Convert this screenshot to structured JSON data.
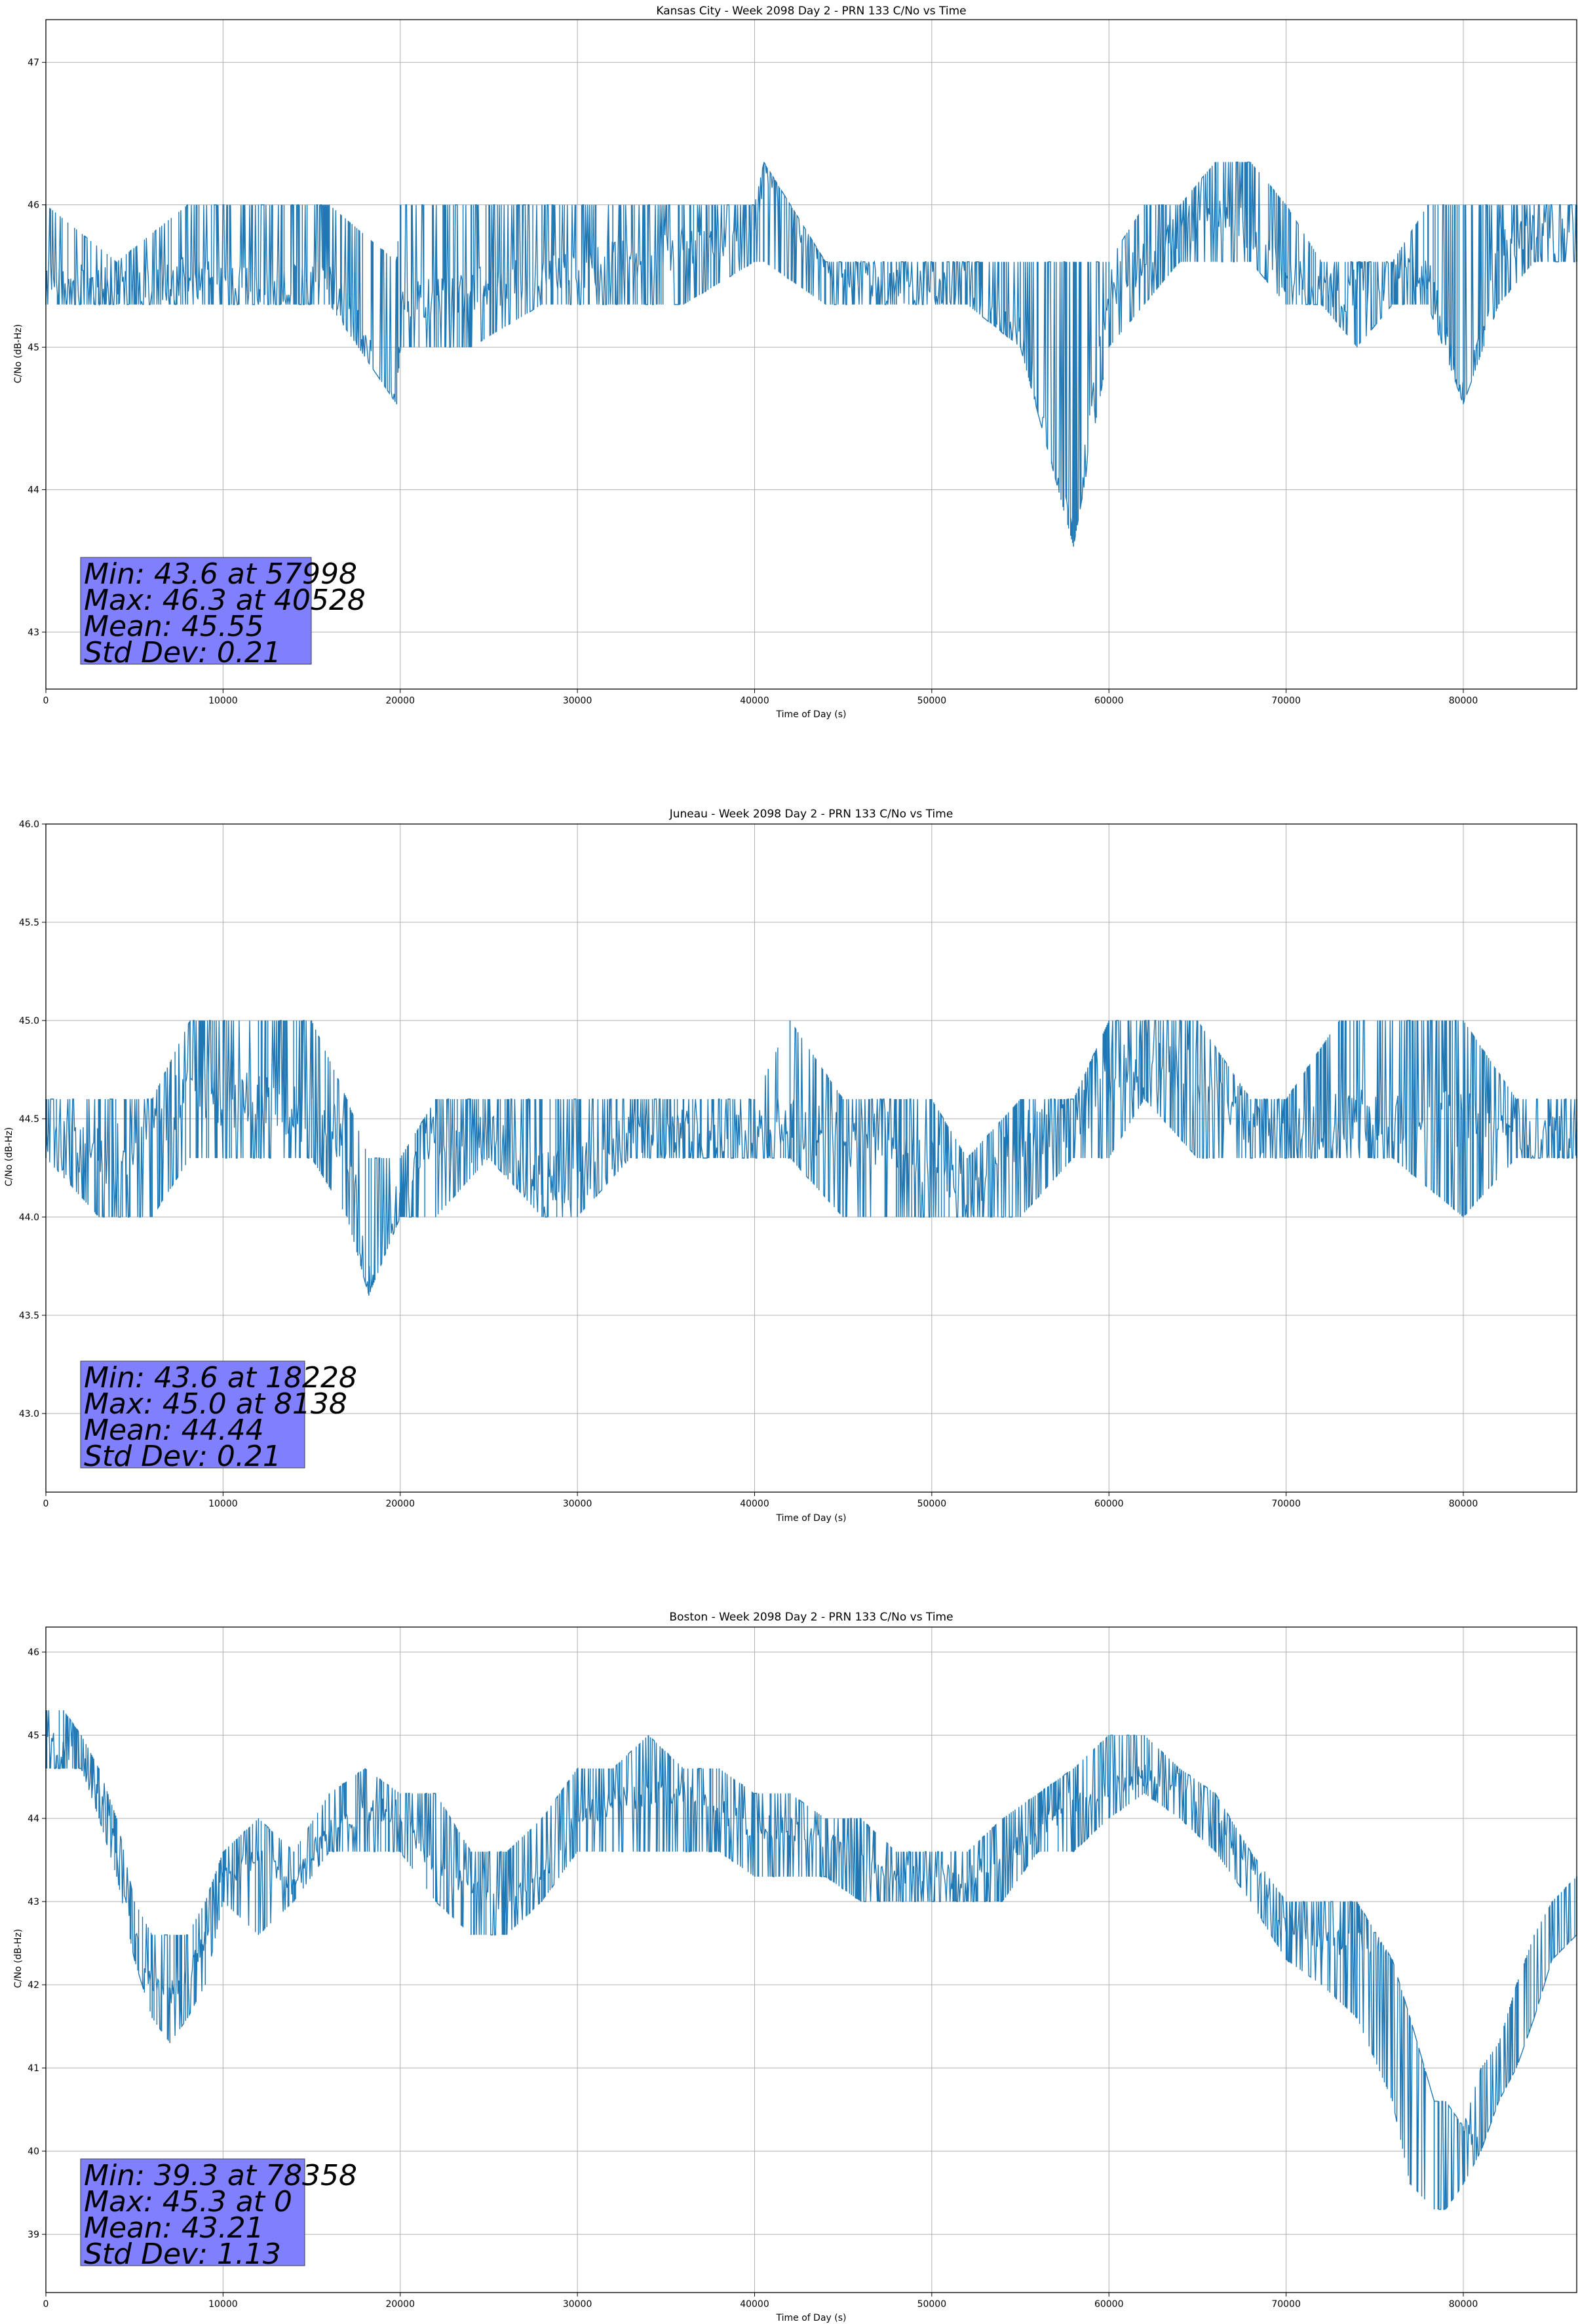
{
  "figure": {
    "series_color": "#1f77b4",
    "stats_box_color": "#8080ff",
    "grid": true
  },
  "chart_data": [
    {
      "type": "line",
      "title": "Kansas City - Week 2098 Day 2 - PRN 133 C/No vs Time",
      "xlabel": "Time of Day (s)",
      "ylabel": "C/No (dB-Hz)",
      "xlim": [
        0,
        86400
      ],
      "ylim": [
        42.6,
        47.3
      ],
      "xticks": [
        0,
        10000,
        20000,
        30000,
        40000,
        50000,
        60000,
        70000,
        80000
      ],
      "yticks": [
        43,
        44,
        45,
        46,
        47
      ],
      "ytick_labels": [
        "43",
        "44",
        "45",
        "46",
        "47"
      ],
      "series": [
        {
          "x": [
            0,
            4000,
            8000,
            12000,
            16000,
            19800,
            20000,
            24000,
            28000,
            32000,
            36000,
            40000,
            40528,
            44000,
            48000,
            52000,
            55000,
            57998,
            60000,
            62000,
            64000,
            66000,
            68000,
            70000,
            72000,
            74000,
            76000,
            78000,
            80000,
            82000,
            84000,
            86400
          ],
          "y": [
            45.5,
            45.4,
            45.5,
            45.4,
            45.5,
            44.6,
            45.3,
            45.4,
            45.5,
            45.6,
            45.7,
            45.8,
            46.3,
            45.6,
            45.4,
            45.4,
            45.1,
            43.6,
            45.4,
            45.6,
            45.8,
            46.0,
            45.8,
            45.5,
            45.4,
            45.4,
            45.5,
            45.5,
            44.6,
            45.7,
            45.8,
            45.8
          ],
          "lo": [
            45.3,
            45.3,
            45.3,
            45.3,
            45.3,
            44.6,
            45.0,
            45.0,
            45.3,
            45.3,
            45.3,
            45.6,
            45.6,
            45.3,
            45.3,
            45.3,
            45.0,
            43.6,
            45.0,
            45.3,
            45.6,
            45.6,
            45.6,
            45.3,
            45.3,
            45.0,
            45.3,
            45.3,
            44.6,
            45.3,
            45.6,
            45.6
          ],
          "hi": [
            46.0,
            45.6,
            46.0,
            46.0,
            46.0,
            45.6,
            46.0,
            46.0,
            46.0,
            46.0,
            46.0,
            46.0,
            46.3,
            45.6,
            45.6,
            45.6,
            45.6,
            45.6,
            45.6,
            46.0,
            46.0,
            46.3,
            46.3,
            46.0,
            45.6,
            45.6,
            45.6,
            46.0,
            46.0,
            46.0,
            46.0,
            46.0
          ]
        }
      ],
      "stats": [
        "Min: 43.6 at 57998",
        "Max: 46.3 at 40528",
        "Mean: 45.55",
        "Std Dev: 0.21"
      ]
    },
    {
      "type": "line",
      "title": "Juneau - Week 2098 Day 2 - PRN 133 C/No vs Time",
      "xlabel": "Time of Day (s)",
      "ylabel": "C/No (dB-Hz)",
      "xlim": [
        0,
        86400
      ],
      "ylim": [
        42.6,
        46.0
      ],
      "xticks": [
        0,
        10000,
        20000,
        30000,
        40000,
        50000,
        60000,
        70000,
        80000
      ],
      "yticks": [
        43.0,
        43.5,
        44.0,
        44.5,
        45.0,
        45.5,
        46.0
      ],
      "ytick_labels": [
        "43.0",
        "43.5",
        "44.0",
        "44.5",
        "45.0",
        "45.5",
        "46.0"
      ],
      "series": [
        {
          "x": [
            0,
            3000,
            6000,
            8138,
            10000,
            12000,
            15000,
            17000,
            18228,
            20000,
            22000,
            25000,
            28000,
            30000,
            33000,
            36000,
            40000,
            42000,
            45000,
            48000,
            50000,
            52000,
            55000,
            58000,
            60000,
            62000,
            65000,
            68000,
            70000,
            73000,
            76000,
            80000,
            83000,
            86400
          ],
          "y": [
            44.4,
            44.3,
            44.4,
            44.7,
            44.6,
            44.6,
            44.5,
            44.4,
            43.6,
            44.1,
            44.4,
            44.4,
            44.2,
            44.2,
            44.4,
            44.4,
            44.4,
            44.5,
            44.4,
            44.4,
            44.3,
            44.1,
            44.4,
            44.5,
            44.7,
            44.8,
            44.7,
            44.5,
            44.4,
            44.5,
            44.5,
            44.5,
            44.4,
            44.4
          ],
          "lo": [
            44.3,
            44.0,
            44.0,
            44.3,
            44.3,
            44.3,
            44.3,
            44.0,
            43.6,
            44.0,
            44.0,
            44.3,
            44.0,
            44.0,
            44.3,
            44.3,
            44.3,
            44.3,
            44.0,
            44.0,
            44.0,
            44.0,
            44.0,
            44.3,
            44.3,
            44.6,
            44.3,
            44.3,
            44.3,
            44.3,
            44.3,
            44.0,
            44.3,
            44.3
          ],
          "hi": [
            44.6,
            44.6,
            44.6,
            45.0,
            45.0,
            45.0,
            45.0,
            44.6,
            44.3,
            44.3,
            44.6,
            44.6,
            44.6,
            44.6,
            44.6,
            44.6,
            44.6,
            45.0,
            44.6,
            44.6,
            44.6,
            44.3,
            44.6,
            44.6,
            45.0,
            45.0,
            45.0,
            44.6,
            44.6,
            45.0,
            45.0,
            45.0,
            44.6,
            44.6
          ]
        }
      ],
      "stats": [
        "Min: 43.6 at 18228",
        "Max: 45.0 at 8138",
        "Mean: 44.44",
        "Std Dev: 0.21"
      ]
    },
    {
      "type": "line",
      "title": "Boston - Week 2098 Day 2 - PRN 133 C/No vs Time",
      "xlabel": "Time of Day (s)",
      "ylabel": "C/No (dB-Hz)",
      "xlim": [
        0,
        86400
      ],
      "ylim": [
        38.3,
        46.3
      ],
      "xticks": [
        0,
        10000,
        20000,
        30000,
        40000,
        50000,
        60000,
        70000,
        80000
      ],
      "yticks": [
        39,
        40,
        41,
        42,
        43,
        44,
        45,
        46
      ],
      "ytick_labels": [
        "39",
        "40",
        "41",
        "42",
        "43",
        "44",
        "45",
        "46"
      ],
      "series": [
        {
          "x": [
            0,
            1000,
            2000,
            3000,
            4000,
            5000,
            6000,
            7000,
            8000,
            9000,
            10000,
            12000,
            14000,
            16000,
            18000,
            20000,
            22000,
            24000,
            26000,
            28000,
            30000,
            32000,
            34000,
            36000,
            38000,
            40000,
            42000,
            44000,
            46000,
            48000,
            50000,
            52000,
            54000,
            56000,
            58000,
            60000,
            62000,
            64000,
            66000,
            68000,
            70000,
            72000,
            74000,
            76000,
            77000,
            78358,
            79000,
            80000,
            81000,
            82000,
            83000,
            84000,
            85000,
            86400
          ],
          "y": [
            45.0,
            44.8,
            44.7,
            44.3,
            43.6,
            42.7,
            42.0,
            41.9,
            42.1,
            42.6,
            43.3,
            43.5,
            43.2,
            43.9,
            44.1,
            44.1,
            43.4,
            43.2,
            43.0,
            43.3,
            44.0,
            44.2,
            44.3,
            44.3,
            44.1,
            43.9,
            43.9,
            43.7,
            43.5,
            43.3,
            43.3,
            43.3,
            43.5,
            43.9,
            44.2,
            44.4,
            44.5,
            44.4,
            44.0,
            43.4,
            42.7,
            42.5,
            42.5,
            42.5,
            42.4,
            41.6,
            40.9,
            40.3,
            40.0,
            40.1,
            40.5,
            41.1,
            41.6,
            42.2
          ],
          "lo": [
            44.6,
            44.6,
            44.6,
            44.0,
            43.3,
            42.3,
            41.6,
            41.3,
            41.6,
            42.0,
            43.0,
            42.6,
            43.0,
            43.6,
            43.6,
            43.6,
            43.0,
            42.6,
            42.6,
            43.0,
            43.6,
            43.6,
            43.6,
            43.6,
            43.6,
            43.3,
            43.3,
            43.3,
            43.0,
            43.0,
            43.0,
            43.0,
            43.0,
            43.6,
            43.6,
            44.0,
            44.3,
            44.0,
            43.6,
            43.0,
            42.3,
            42.0,
            41.6,
            40.6,
            39.6,
            39.3,
            39.3,
            39.6,
            40.0,
            40.6,
            41.0,
            41.6,
            42.3,
            42.6
          ],
          "hi": [
            45.3,
            45.3,
            45.0,
            44.6,
            44.0,
            43.0,
            42.6,
            42.6,
            42.6,
            43.0,
            43.6,
            44.0,
            43.6,
            44.3,
            44.6,
            44.3,
            44.3,
            43.6,
            43.6,
            44.0,
            44.6,
            44.6,
            45.0,
            44.6,
            44.6,
            44.3,
            44.3,
            44.0,
            44.0,
            43.6,
            43.6,
            43.6,
            44.0,
            44.3,
            44.6,
            45.0,
            45.0,
            44.6,
            44.3,
            43.6,
            43.0,
            43.0,
            43.0,
            42.3,
            41.6,
            40.6,
            40.6,
            40.3,
            41.0,
            41.3,
            42.0,
            42.6,
            43.0,
            43.3
          ]
        }
      ],
      "stats": [
        "Min: 39.3 at 78358",
        "Max: 45.3 at 0",
        "Mean: 43.21",
        "Std Dev: 1.13"
      ]
    }
  ]
}
